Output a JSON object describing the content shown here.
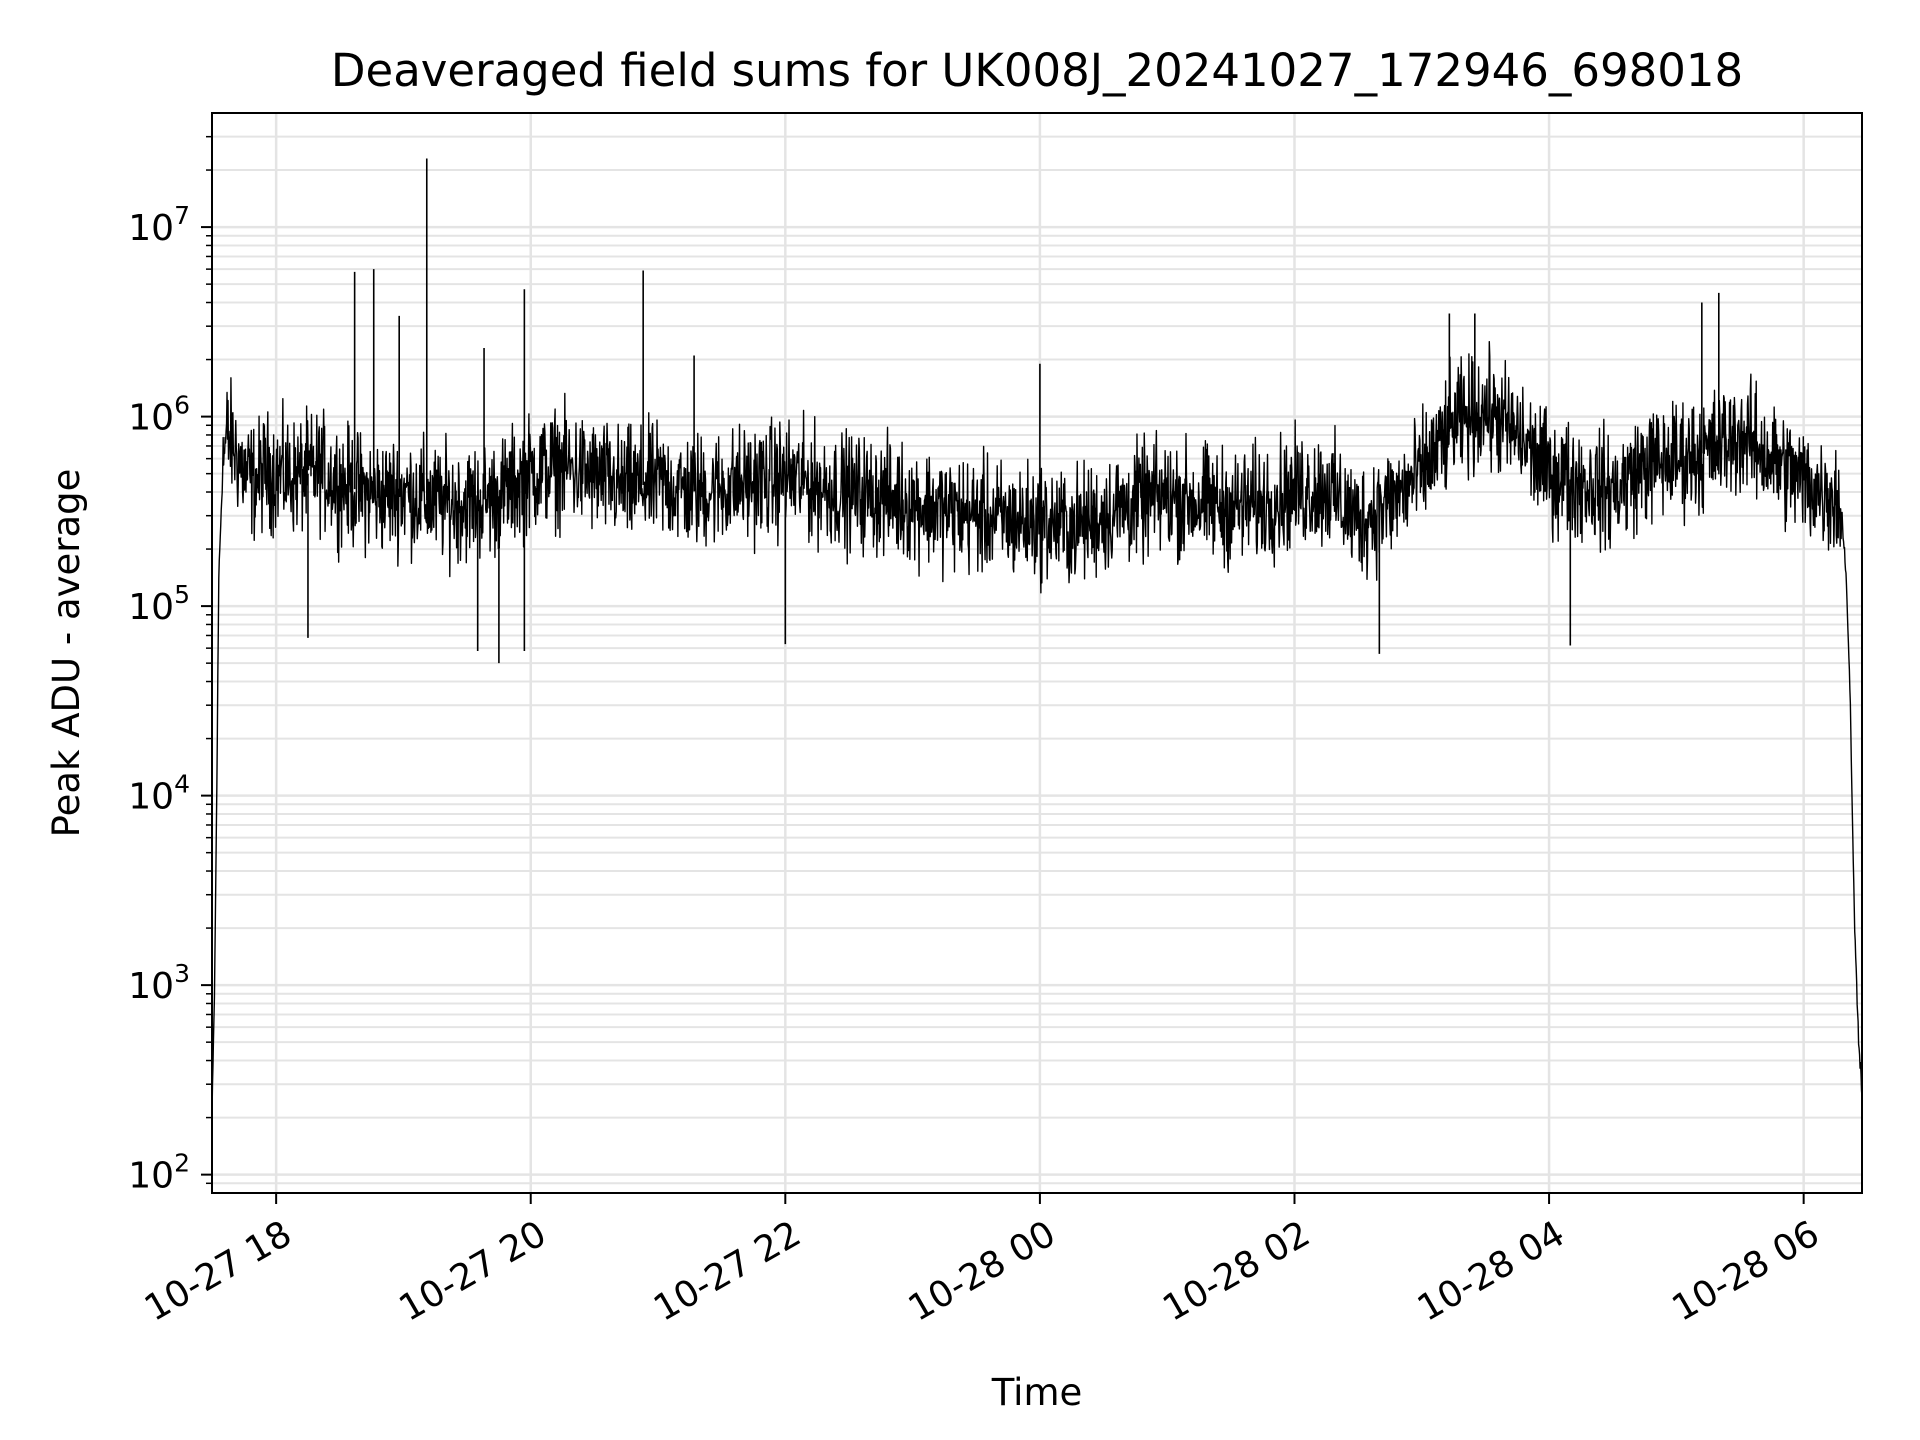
{
  "chart_data": {
    "type": "line",
    "title": "Deaveraged field sums for UK008J_20241027_172946_698018",
    "xlabel": "Time",
    "ylabel": "Peak ADU - average",
    "y_scale": "log",
    "grid": true,
    "legend": "none",
    "xlim": [
      "2024-10-27 17:29:46",
      "2024-10-28 06:27:30"
    ],
    "ylim": [
      80,
      40000000
    ],
    "x_ticks": [
      "2024-10-27 18:00",
      "2024-10-27 20:00",
      "2024-10-27 22:00",
      "2024-10-28 00:00",
      "2024-10-28 02:00",
      "2024-10-28 04:00",
      "2024-10-28 06:00"
    ],
    "x_tick_labels": [
      "10-27 18",
      "10-27 20",
      "10-27 22",
      "10-28 00",
      "10-28 02",
      "10-28 04",
      "10-28 06"
    ],
    "y_ticks": [
      100,
      1000,
      10000,
      100000,
      1000000,
      10000000
    ],
    "y_tick_labels": [
      {
        "base": "10",
        "exp": "2"
      },
      {
        "base": "10",
        "exp": "3"
      },
      {
        "base": "10",
        "exp": "4"
      },
      {
        "base": "10",
        "exp": "5"
      },
      {
        "base": "10",
        "exp": "6"
      },
      {
        "base": "10",
        "exp": "7"
      }
    ],
    "series": [
      {
        "color": "#000000",
        "x": [
          "2024-10-27 17:29:46",
          "2024-10-27 17:31:00",
          "2024-10-27 17:32:00",
          "2024-10-27 17:33:00",
          "2024-10-27 17:35:00",
          "2024-10-27 17:37:00",
          "2024-10-27 17:40:00",
          "2024-10-27 17:45:00",
          "2024-10-27 17:50:00",
          "2024-10-27 17:55:00",
          "2024-10-27 18:00:00",
          "2024-10-27 18:10:00",
          "2024-10-27 18:20:00",
          "2024-10-27 18:30:00",
          "2024-10-27 18:40:00",
          "2024-10-27 18:50:00",
          "2024-10-27 19:00:00",
          "2024-10-27 19:15:00",
          "2024-10-27 19:30:00",
          "2024-10-27 19:45:00",
          "2024-10-27 20:00:00",
          "2024-10-27 20:15:00",
          "2024-10-27 20:30:00",
          "2024-10-27 20:45:00",
          "2024-10-27 21:00:00",
          "2024-10-27 21:15:00",
          "2024-10-27 21:30:00",
          "2024-10-27 21:45:00",
          "2024-10-27 22:00:00",
          "2024-10-27 22:15:00",
          "2024-10-27 22:30:00",
          "2024-10-27 22:45:00",
          "2024-10-27 23:00:00",
          "2024-10-27 23:15:00",
          "2024-10-27 23:30:00",
          "2024-10-27 23:45:00",
          "2024-10-28 00:00:00",
          "2024-10-28 00:15:00",
          "2024-10-28 00:30:00",
          "2024-10-28 00:45:00",
          "2024-10-28 01:00:00",
          "2024-10-28 01:15:00",
          "2024-10-28 01:30:00",
          "2024-10-28 01:45:00",
          "2024-10-28 02:00:00",
          "2024-10-28 02:15:00",
          "2024-10-28 02:30:00",
          "2024-10-28 02:45:00",
          "2024-10-28 03:00:00",
          "2024-10-28 03:15:00",
          "2024-10-28 03:30:00",
          "2024-10-28 03:45:00",
          "2024-10-28 04:00:00",
          "2024-10-28 04:15:00",
          "2024-10-28 04:30:00",
          "2024-10-28 04:45:00",
          "2024-10-28 05:00:00",
          "2024-10-28 05:15:00",
          "2024-10-28 05:30:00",
          "2024-10-28 05:45:00",
          "2024-10-28 06:00:00",
          "2024-10-28 06:10:00",
          "2024-10-28 06:15:00",
          "2024-10-28 06:18:00",
          "2024-10-28 06:20:00",
          "2024-10-28 06:22:00",
          "2024-10-28 06:24:00",
          "2024-10-28 06:26:00",
          "2024-10-28 06:27:30"
        ],
        "y": [
          200,
          1000,
          10000,
          150000,
          600000,
          800000,
          700000,
          500000,
          450000,
          520000,
          500000,
          480000,
          520000,
          450000,
          400000,
          380000,
          400000,
          350000,
          350000,
          380000,
          500000,
          550000,
          480000,
          420000,
          450000,
          400000,
          420000,
          450000,
          480000,
          430000,
          400000,
          380000,
          350000,
          320000,
          300000,
          280000,
          280000,
          260000,
          300000,
          350000,
          380000,
          350000,
          330000,
          350000,
          400000,
          420000,
          280000,
          350000,
          500000,
          900000,
          1100000,
          800000,
          500000,
          450000,
          400000,
          550000,
          600000,
          650000,
          800000,
          600000,
          450000,
          400000,
          380000,
          300000,
          150000,
          30000,
          2000,
          500,
          280
        ],
        "spikes": [
          {
            "x": "2024-10-27 18:37:00",
            "y": 5800000
          },
          {
            "x": "2024-10-27 18:46:00",
            "y": 6000000
          },
          {
            "x": "2024-10-27 18:58:00",
            "y": 3400000
          },
          {
            "x": "2024-10-27 19:11:00",
            "y": 23000000
          },
          {
            "x": "2024-10-27 19:38:00",
            "y": 2300000
          },
          {
            "x": "2024-10-27 19:57:00",
            "y": 4700000
          },
          {
            "x": "2024-10-27 20:53:00",
            "y": 5900000
          },
          {
            "x": "2024-10-27 21:17:00",
            "y": 2100000
          },
          {
            "x": "2024-10-28 00:00:00",
            "y": 1900000
          },
          {
            "x": "2024-10-28 03:13:00",
            "y": 3500000
          },
          {
            "x": "2024-10-28 03:25:00",
            "y": 3500000
          },
          {
            "x": "2024-10-28 05:12:00",
            "y": 4000000
          },
          {
            "x": "2024-10-28 05:20:00",
            "y": 4500000
          },
          {
            "x": "2024-10-27 19:45:00",
            "y": 50000
          },
          {
            "x": "2024-10-27 19:35:00",
            "y": 58000
          },
          {
            "x": "2024-10-27 19:57:00",
            "y": 58000
          },
          {
            "x": "2024-10-27 18:15:00",
            "y": 68000
          },
          {
            "x": "2024-10-28 02:40:00",
            "y": 56000
          },
          {
            "x": "2024-10-28 04:10:00",
            "y": 62000
          },
          {
            "x": "2024-10-27 22:00:00",
            "y": 63000
          }
        ]
      }
    ]
  }
}
